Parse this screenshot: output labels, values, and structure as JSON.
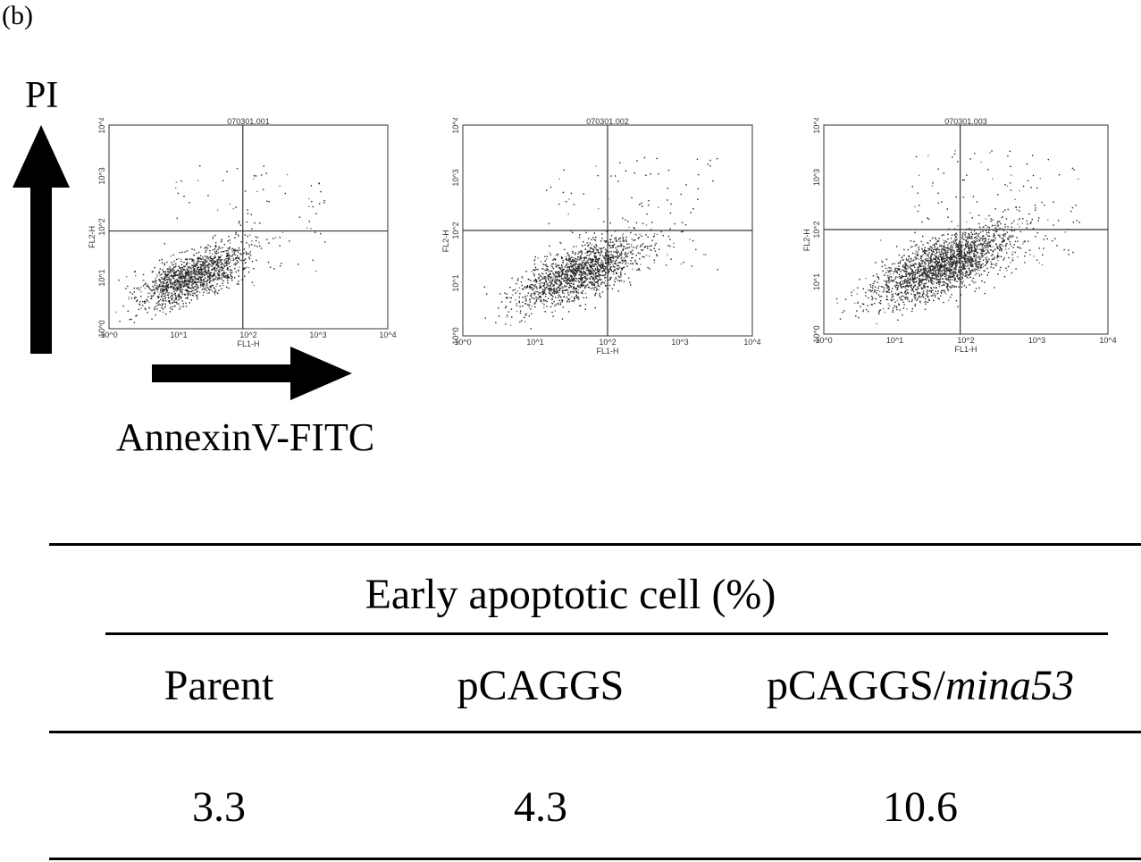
{
  "panel_label": "(b)",
  "y_axis_label": "PI",
  "x_axis_label": "AnnexinV-FITC",
  "plots": [
    {
      "title": "070301.001",
      "xlabel": "FL1-H",
      "ylabel": "FL2-H",
      "ticks": [
        "10^0",
        "10^1",
        "10^2",
        "10^3",
        "10^4"
      ]
    },
    {
      "title": "070301.002",
      "xlabel": "FL1-H",
      "ylabel": "FL2-H",
      "ticks": [
        "10^0",
        "10^1",
        "10^2",
        "10^3",
        "10^4"
      ]
    },
    {
      "title": "070301.003",
      "xlabel": "FL1-H",
      "ylabel": "FL2-H",
      "ticks": [
        "10^0",
        "10^1",
        "10^2",
        "10^3",
        "10^4"
      ]
    }
  ],
  "table": {
    "title": "Early apoptotic cell (%)",
    "columns": [
      {
        "name": "Parent",
        "italic_suffix": ""
      },
      {
        "name": "pCAGGS",
        "italic_suffix": ""
      },
      {
        "name": "pCAGGS/",
        "italic_suffix": "mina53"
      }
    ],
    "values": [
      "3.3",
      "4.3",
      "10.6"
    ]
  },
  "chart_data": {
    "type": "table",
    "title": "Early apoptotic cell (%)",
    "categories": [
      "Parent",
      "pCAGGS",
      "pCAGGS/mina53"
    ],
    "values": [
      3.3,
      4.3,
      10.6
    ]
  }
}
